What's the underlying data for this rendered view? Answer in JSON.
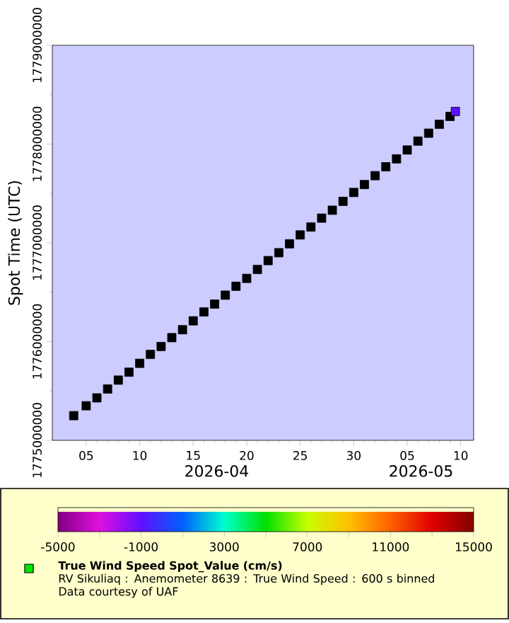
{
  "chart_data": {
    "type": "scatter",
    "ylabel": "Spot Time (UTC)",
    "clabel": "True Wind Speed Spot_Value (cm/s)",
    "marker": "square",
    "xlim": [
      "2026-04-01T20:00",
      "2026-05-11T05:00"
    ],
    "xticks": [
      {
        "value": "2026-04-05",
        "label": "05"
      },
      {
        "value": "2026-04-10",
        "label": "10"
      },
      {
        "value": "2026-04-15",
        "label": "15"
      },
      {
        "value": "2026-04-20",
        "label": "20"
      },
      {
        "value": "2026-04-25",
        "label": "25"
      },
      {
        "value": "2026-04-30",
        "label": "30"
      },
      {
        "value": "2026-05-05",
        "label": "05"
      },
      {
        "value": "2026-05-10",
        "label": "10"
      }
    ],
    "ylim": [
      1775000000,
      1779000000
    ],
    "yticks": [
      1775000000,
      1776000000,
      1777000000,
      1778000000,
      1779000000
    ],
    "clim": [
      -5000,
      15000
    ],
    "cticks": [
      -5000,
      {
        "value": -3000,
        "label": null
      },
      -1000,
      {
        "value": 1000,
        "label": null
      },
      3000,
      {
        "value": 5000,
        "label": null
      },
      7000,
      {
        "value": 9000,
        "label": null
      },
      11000,
      {
        "value": 13000,
        "label": null
      },
      15000
    ],
    "series": [
      {
        "color": "#000000",
        "x": [
          "2026-04-03T20:00",
          "2026-04-05",
          "2026-04-06",
          "2026-04-07",
          "2026-04-08",
          "2026-04-09",
          "2026-04-10",
          "2026-04-11",
          "2026-04-12",
          "2026-04-13",
          "2026-04-14",
          "2026-04-15",
          "2026-04-16",
          "2026-04-17",
          "2026-04-18",
          "2026-04-19",
          "2026-04-20",
          "2026-04-21",
          "2026-04-22",
          "2026-04-23",
          "2026-04-24",
          "2026-04-25",
          "2026-04-26",
          "2026-04-27",
          "2026-04-28",
          "2026-04-29",
          "2026-04-30",
          "2026-05-01",
          "2026-05-02",
          "2026-05-03",
          "2026-05-04",
          "2026-05-05",
          "2026-05-06",
          "2026-05-07",
          "2026-05-08",
          "2026-05-09"
        ],
        "values": [
          1775250000,
          1775350000,
          1775430000,
          1775520000,
          1775610000,
          1775690000,
          1775780000,
          1775870000,
          1775950000,
          1776040000,
          1776120000,
          1776210000,
          1776300000,
          1776380000,
          1776470000,
          1776560000,
          1776640000,
          1776730000,
          1776820000,
          1776900000,
          1776990000,
          1777080000,
          1777160000,
          1777250000,
          1777330000,
          1777420000,
          1777510000,
          1777590000,
          1777680000,
          1777770000,
          1777850000,
          1777940000,
          1778030000,
          1778110000,
          1778200000,
          1778280000
        ]
      },
      {
        "x": [
          "2026-05-09T12:00"
        ],
        "values": [
          1778330000
        ],
        "cvalues": [
          -1000
        ]
      }
    ],
    "annotations": [
      "2026-04",
      "2026-05",
      "RV Sikuliaq : Anemometer 8639 : True Wind Speed : 600 s binned",
      "Data courtesy of UAF"
    ]
  }
}
